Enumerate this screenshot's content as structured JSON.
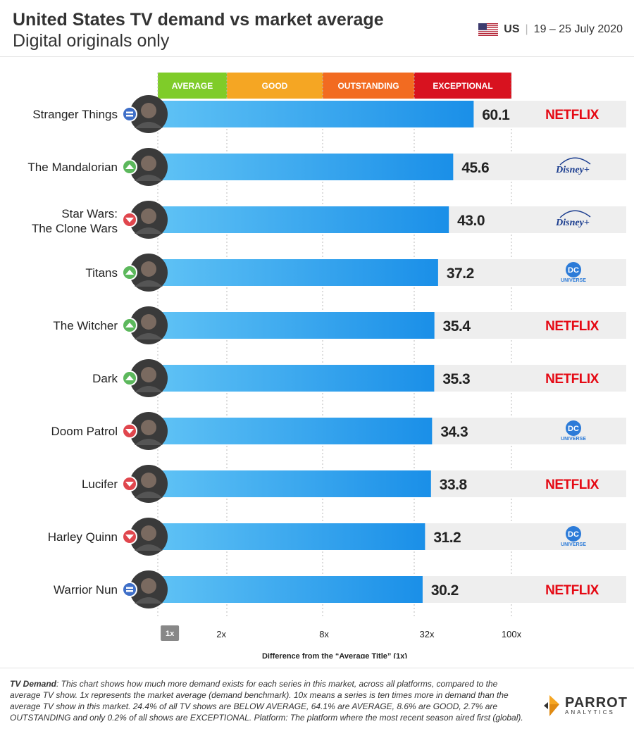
{
  "header": {
    "title": "United States TV demand vs market average",
    "subtitle": "Digital originals only",
    "country_code": "US",
    "date_range": "19 – 25 July 2020"
  },
  "chart_data": {
    "type": "bar",
    "orientation": "horizontal",
    "xscale": "log",
    "xlabel": "Difference from the “Average Title” (1x)",
    "xlim": [
      0.85,
      100
    ],
    "x_ticks": [
      "1x",
      "2x",
      "8x",
      "32x",
      "100x"
    ],
    "tiers": [
      {
        "label": "AVERAGE",
        "color": "#7fcc29"
      },
      {
        "label": "GOOD",
        "color": "#f5a623"
      },
      {
        "label": "OUTSTANDING",
        "color": "#f26b21"
      },
      {
        "label": "EXCEPTIONAL",
        "color": "#d8121f"
      }
    ],
    "categories": [
      "Stranger Things",
      "The Mandalorian",
      "Star Wars:\nThe Clone Wars",
      "Titans",
      "The Witcher",
      "Dark",
      "Doom Patrol",
      "Lucifer",
      "Harley Quinn",
      "Warrior Nun"
    ],
    "values": [
      60.1,
      45.6,
      43.0,
      37.2,
      35.4,
      35.3,
      34.3,
      33.8,
      31.2,
      30.2
    ],
    "trend": [
      "same",
      "up",
      "down",
      "up",
      "up",
      "up",
      "down",
      "down",
      "down",
      "same"
    ],
    "platforms": [
      "NETFLIX",
      "Disney+",
      "Disney+",
      "DC UNIVERSE",
      "NETFLIX",
      "NETFLIX",
      "DC UNIVERSE",
      "NETFLIX",
      "DC UNIVERSE",
      "NETFLIX"
    ]
  },
  "colors": {
    "bar_light": "#cfe9fb",
    "bar_gradient_start": "#5fc2f5",
    "bar_gradient_end": "#1a8fe8",
    "trend_up": "#5cb85c",
    "trend_down": "#e0464d",
    "trend_same": "#3f6fc8",
    "netflix": "#e50914",
    "disney": "#1b3d8f",
    "dc": "#2c7bd8"
  },
  "footnote": {
    "term": "TV Demand",
    "text": ": This chart shows how much more demand exists for each series in this market, across all platforms, compared to the average TV show. 1x represents the market average (demand benchmark). 10x means a series is ten times more in demand than the average TV show in this market. 24.4% of all TV shows are BELOW AVERAGE, 64.1% are AVERAGE, 8.6% are GOOD, 2.7% are OUTSTANDING and only 0.2% of all shows are EXCEPTIONAL. Platform: The platform where the most recent season aired first (global)."
  },
  "brand": {
    "name": "PARROT",
    "tagline": "ANALYTICS"
  }
}
